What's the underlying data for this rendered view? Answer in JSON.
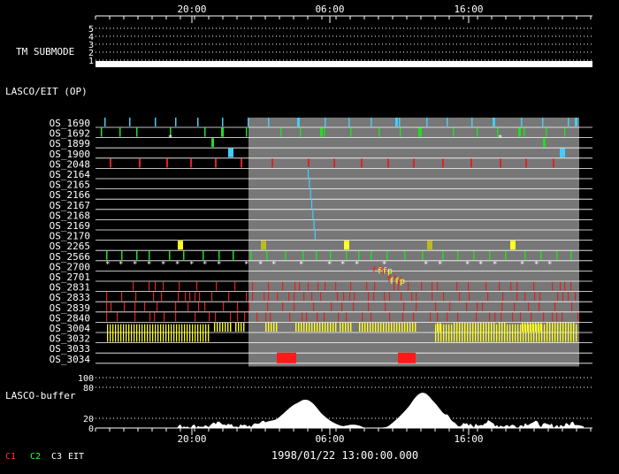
{
  "top_axis": {
    "ticks": [
      "20:00",
      "06:00",
      "16:00"
    ]
  },
  "bottom_axis": {
    "ticks": [
      "20:00",
      "06:00",
      "16:00"
    ]
  },
  "date_label": "1998/01/22 13:00:00.000",
  "tm_submode": {
    "label": "TM SUBMODE",
    "levels": [
      "5",
      "4",
      "3",
      "2",
      "1"
    ],
    "current_level": 1
  },
  "lasco_eit": {
    "label": "LASCO/EIT (OP)"
  },
  "os_rows": [
    "OS_1690",
    "OS_1692",
    "OS_1899",
    "OS_1900",
    "OS_2048",
    "OS_2164",
    "OS_2165",
    "OS_2166",
    "OS_2167",
    "OS_2168",
    "OS_2169",
    "OS_2170",
    "OS_2265",
    "OS_2566",
    "OS_2700",
    "OS_2701",
    "OS_2831",
    "OS_2833",
    "OS_2839",
    "OS_2840",
    "OS_3004",
    "OS_3032",
    "OS_3033",
    "OS_3034"
  ],
  "buffer": {
    "label": "LASCO-buffer",
    "ticks": [
      "100",
      "80",
      "20",
      "0"
    ],
    "ylim": [
      0,
      100
    ]
  },
  "legend": [
    {
      "text": "C1",
      "color": "#ff3030"
    },
    {
      "text": "C2",
      "color": "#30ff30"
    },
    {
      "text": "C3",
      "color": "#ffffff"
    },
    {
      "text": "EIT",
      "color": "#ffffff"
    }
  ],
  "markers": [
    "ffp",
    "ffp"
  ],
  "colors": {
    "background": "#000000",
    "shaded_region": "#777777",
    "cyan": "#44ccff",
    "green": "#22dd22",
    "red": "#dd2222",
    "yellow": "#ffff22",
    "olive": "#bbbb22",
    "white": "#ffffff"
  }
}
